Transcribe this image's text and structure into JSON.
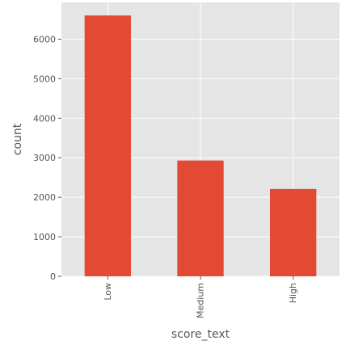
{
  "chart_data": {
    "type": "bar",
    "categories": [
      "Low",
      "Medium",
      "High"
    ],
    "values": [
      6600,
      2930,
      2210
    ],
    "title": "",
    "xlabel": "score_text",
    "ylabel": "count",
    "ylim": [
      0,
      6930
    ],
    "yticks": [
      0,
      1000,
      2000,
      3000,
      4000,
      5000,
      6000
    ],
    "grid": true,
    "legend": "none",
    "x_tick_rotation": "vertical"
  },
  "colors": {
    "bar": "#E24A33",
    "plot_background": "#E5E5E5",
    "grid": "#FFFFFF",
    "text": "#555555"
  }
}
